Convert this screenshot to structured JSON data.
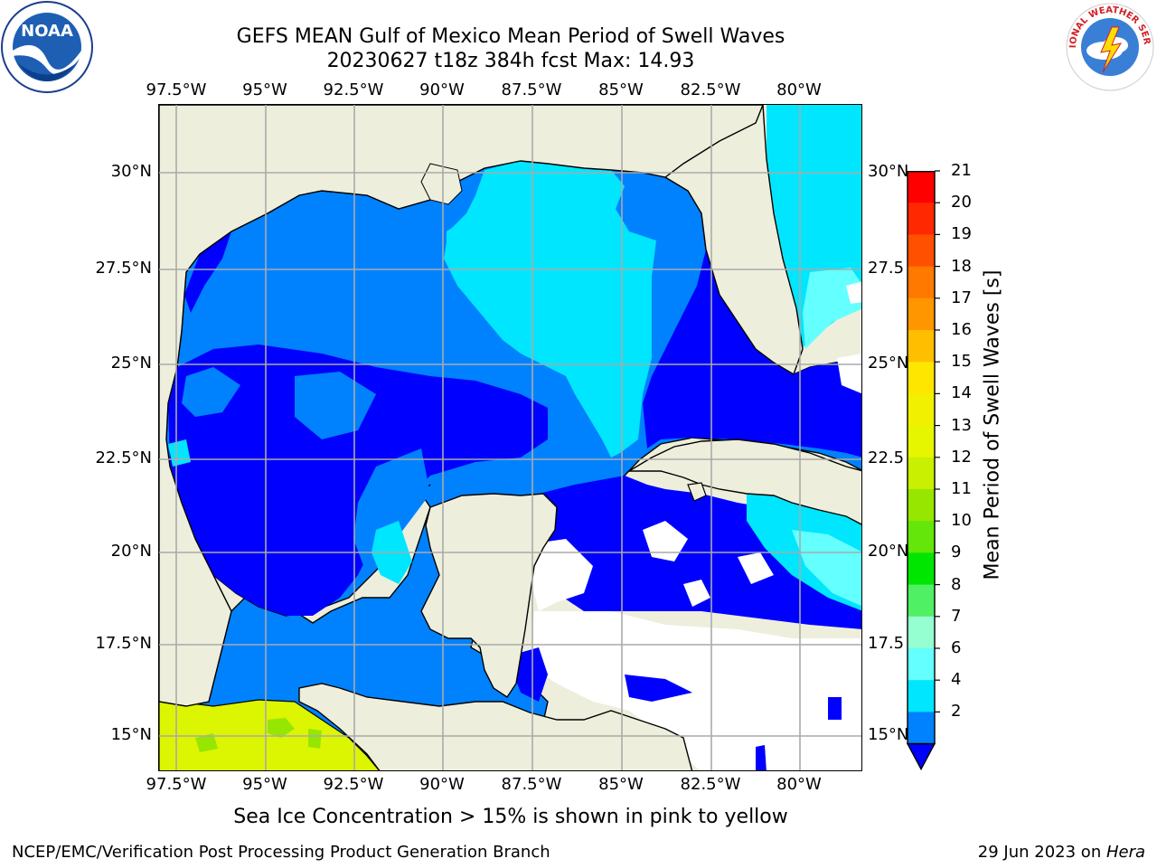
{
  "header": {
    "title_line1": "GEFS MEAN Gulf of Mexico Mean Period of Swell Waves",
    "title_line2": "20230627 t18z 384h fcst   Max: 14.93"
  },
  "logos": {
    "left": "noaa-logo",
    "right": "national-weather-service-logo",
    "left_text": "NOAA",
    "right_text": "NATIONAL WEATHER SERVICE"
  },
  "map": {
    "lon_ticks": [
      "97.5°W",
      "95°W",
      "92.5°W",
      "90°W",
      "87.5°W",
      "85°W",
      "82.5°W",
      "80°W"
    ],
    "lat_ticks_left": [
      "30°N",
      "27.5°N",
      "25°N",
      "22.5°N",
      "20°N",
      "17.5°N",
      "15°N"
    ],
    "lat_ticks_right": [
      "30°N",
      "27.5",
      "25°N",
      "22.5",
      "20°N",
      "17.5",
      "15°N"
    ],
    "land_color": "#eeeedc",
    "grid_color": "#aaaaaa"
  },
  "colorbar": {
    "label": "Mean Period of Swell Waves [s]",
    "ticks": [
      "21",
      "20",
      "19",
      "18",
      "17",
      "16",
      "15",
      "14",
      "13",
      "12",
      "11",
      "10",
      "9",
      "8",
      "7",
      "6",
      "4",
      "2"
    ],
    "colors": [
      "#ff0000",
      "#ff2800",
      "#ff5000",
      "#ff7800",
      "#ff9600",
      "#ffbe00",
      "#ffe600",
      "#f0f000",
      "#e6f500",
      "#c8f000",
      "#96e600",
      "#64e60a",
      "#00e600",
      "#50f064",
      "#96ffd2",
      "#64ffff",
      "#00e6ff",
      "#0082ff"
    ],
    "extend_color": "#0000ff"
  },
  "notes": {
    "ice": "Sea Ice Concentration > 15% is shown in pink to yellow"
  },
  "footer": {
    "left": "NCEP/EMC/Verification Post Processing Product Generation Branch",
    "right_date": "29 Jun 2023 on ",
    "right_machine": "Hera"
  }
}
